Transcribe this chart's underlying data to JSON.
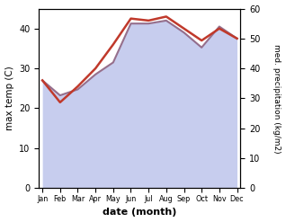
{
  "months": [
    "Jan",
    "Feb",
    "Mar",
    "Apr",
    "May",
    "Jun",
    "Jul",
    "Aug",
    "Sep",
    "Oct",
    "Nov",
    "Dec"
  ],
  "month_x": [
    0,
    1,
    2,
    3,
    4,
    5,
    6,
    7,
    8,
    9,
    10,
    11
  ],
  "max_temp": [
    27,
    21.5,
    25.5,
    30,
    36,
    42.5,
    42,
    43,
    40,
    37,
    40,
    37.5
  ],
  "precipitation": [
    36,
    31,
    33,
    38,
    42,
    55,
    55,
    56,
    52,
    47,
    54,
    50
  ],
  "temp_color": "#c0392b",
  "precip_color": "#8b6080",
  "fill_color": "#b0b8e8",
  "title": "",
  "xlabel": "date (month)",
  "ylabel_left": "max temp (C)",
  "ylabel_right": "med. precipitation (kg/m2)",
  "ylim_left": [
    0,
    45
  ],
  "ylim_right": [
    0,
    60
  ],
  "yticks_left": [
    0,
    10,
    20,
    30,
    40
  ],
  "yticks_right": [
    0,
    10,
    20,
    30,
    40,
    50,
    60
  ],
  "background_color": "#ffffff"
}
